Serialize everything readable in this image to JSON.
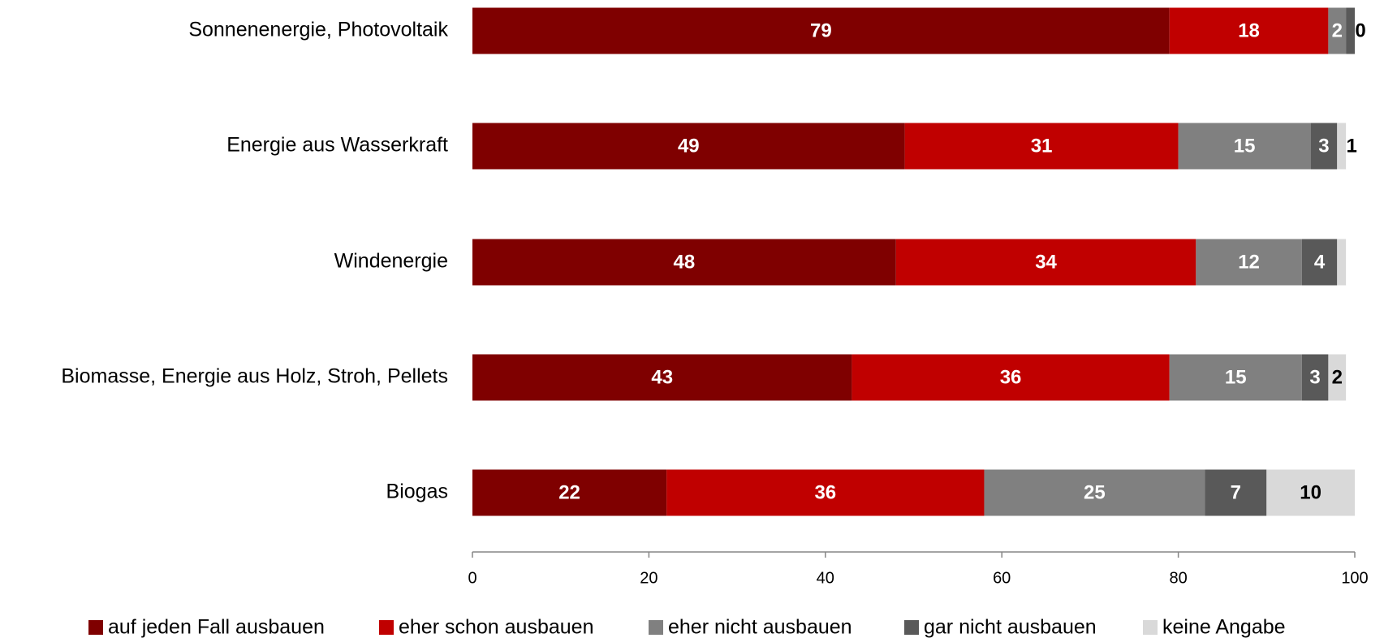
{
  "chart_data": {
    "type": "stacked_barh",
    "categories": [
      "Sonnenenergie, Photovoltaik",
      "Energie aus Wasserkraft",
      "Windenergie",
      "Biomasse, Energie aus Holz, Stroh, Pellets",
      "Biogas"
    ],
    "series": [
      {
        "name": "auf jeden Fall ausbauen",
        "color": "#7f0000",
        "values": [
          79,
          49,
          48,
          43,
          22
        ]
      },
      {
        "name": "eher schon ausbauen",
        "color": "#c00000",
        "values": [
          18,
          31,
          34,
          36,
          36
        ]
      },
      {
        "name": "eher nicht ausbauen",
        "color": "#808080",
        "values": [
          2,
          15,
          12,
          15,
          25
        ]
      },
      {
        "name": "gar nicht ausbauen",
        "color": "#595959",
        "values": [
          1,
          3,
          4,
          3,
          7
        ]
      },
      {
        "name": "keine Angabe",
        "color": "#d9d9d9",
        "values": [
          0,
          1,
          1,
          2,
          10
        ],
        "value_labels": [
          "0",
          "1",
          null,
          "2",
          "10"
        ]
      }
    ],
    "xlim": [
      0,
      100
    ],
    "xticks": [
      0,
      20,
      40,
      60,
      80,
      100
    ],
    "legend": "bottom"
  }
}
